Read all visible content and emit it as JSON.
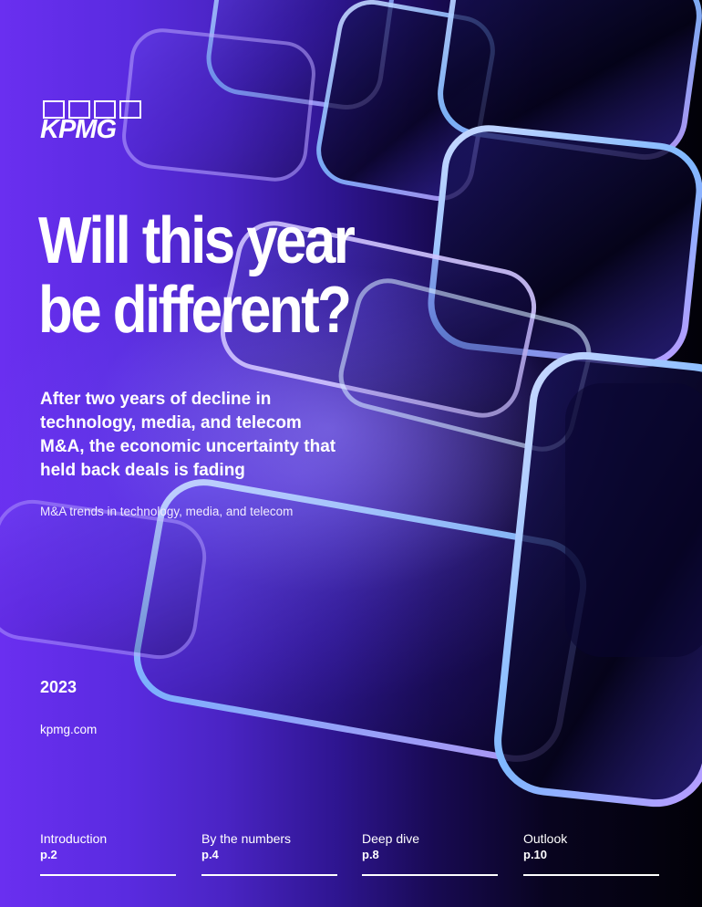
{
  "brand": {
    "logo_text": "KPMG"
  },
  "cover": {
    "headline_line1": "Will this year",
    "headline_line2": "be different?",
    "subheadline": "After two years of decline in technology, media, and telecom M&A, the economic uncertainty that held back deals is fading",
    "tagline": "M&A trends in technology, media, and telecom",
    "year": "2023",
    "website": "kpmg.com"
  },
  "nav": {
    "items": [
      {
        "label": "Introduction",
        "page": "p.2"
      },
      {
        "label": "By the numbers",
        "page": "p.4"
      },
      {
        "label": "Deep dive",
        "page": "p.8"
      },
      {
        "label": "Outlook",
        "page": "p.10"
      }
    ]
  },
  "colors": {
    "brand_purple": "#7213EA",
    "background_dark": "#02010A",
    "text": "#FFFFFF"
  }
}
